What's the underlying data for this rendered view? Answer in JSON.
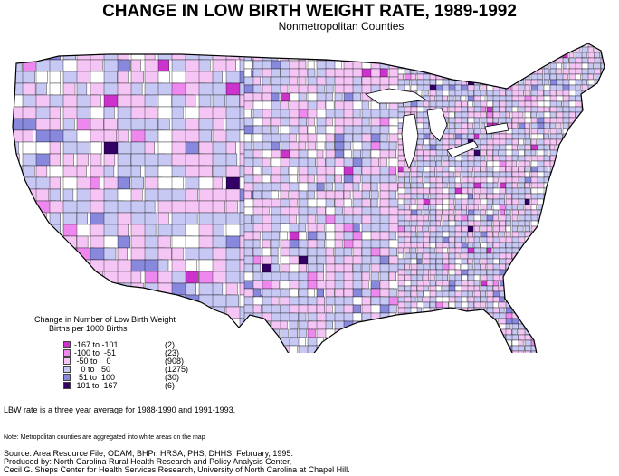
{
  "title": "CHANGE IN LOW BIRTH WEIGHT RATE, 1989-1992",
  "subtitle": "Nonmetropolitan Counties",
  "legend": {
    "title_line1": "Change in Number of Low Birth Weight",
    "title_line2": "Births  per  1000  Births",
    "items": [
      {
        "range": "-167 to -101",
        "count": "(2)",
        "color": "#cc33cc"
      },
      {
        "range": "-100 to  -51",
        "count": "(23)",
        "color": "#ee88ee"
      },
      {
        "range": " -50 to    0",
        "count": "(908)",
        "color": "#f5c6f5"
      },
      {
        "range": "   0 to   50",
        "count": "(1275)",
        "color": "#c8c8f5"
      },
      {
        "range": "  51 to  100",
        "count": "(30)",
        "color": "#8888dd"
      },
      {
        "range": " 101 to  167",
        "count": "(6)",
        "color": "#330066"
      }
    ]
  },
  "note_rate": "LBW rate is a three year average for 1988-1990 and 1991-1993.",
  "note_metro": "Note: Metropolitan counties are aggregated into white areas on the map",
  "source": [
    "Source: Area Resource File, ODAM, BHPr, HRSA, PHS, DHHS, February, 1995.",
    "Produced by: North Carolina  Rural Health Research and Policy Analysis Center,",
    "Cecil G. Sheps Center for Health Services Research, University of North Carolina at Chapel Hill."
  ]
}
